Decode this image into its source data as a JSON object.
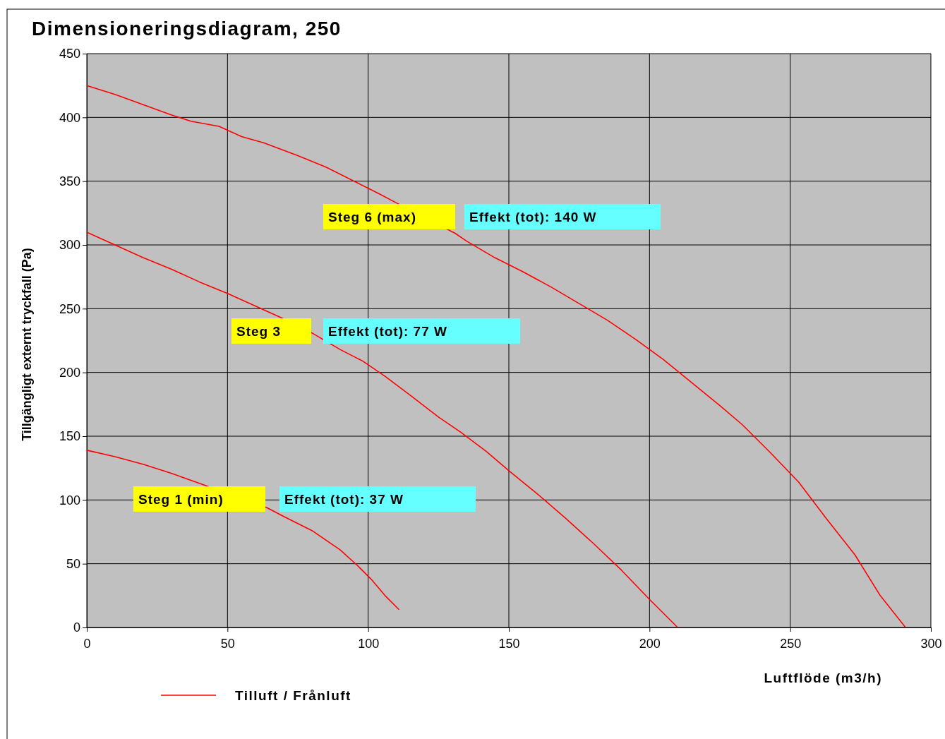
{
  "chart_data": {
    "type": "line",
    "title": "Dimensioneringsdiagram, 250",
    "xlabel": "Luftflöde (m3/h)",
    "ylabel": "Tillgängligt externt tryckfall (Pa)",
    "xlim": [
      0,
      300
    ],
    "xticks": [
      0,
      50,
      100,
      150,
      200,
      250,
      300
    ],
    "ylim": [
      0,
      450
    ],
    "yticks": [
      0,
      50,
      100,
      150,
      200,
      250,
      300,
      350,
      400,
      450
    ],
    "grid": true,
    "legend": "bottom left",
    "line_style": "solid",
    "marker": "none",
    "series": [
      {
        "name": "Tilluft / Frånluft",
        "color": "#ff0000",
        "x": [
          0,
          10,
          20,
          30,
          37,
          47,
          55,
          63,
          75,
          85,
          95,
          104,
          110,
          131,
          135,
          145,
          155,
          165,
          175,
          185,
          195,
          205,
          215,
          225,
          233,
          243,
          253,
          263,
          273,
          282,
          291
        ],
        "values": [
          425,
          418,
          410,
          402,
          397,
          393,
          385,
          380,
          370,
          361,
          350,
          340,
          333,
          309,
          303,
          290,
          279,
          267,
          254,
          241,
          226,
          210,
          192,
          174,
          159,
          137,
          114,
          85,
          57,
          25,
          0
        ]
      },
      {
        "color": "#ff0000",
        "x": [
          0,
          10,
          20,
          30,
          40,
          50,
          60,
          70,
          80,
          90,
          98,
          106,
          115,
          125,
          133,
          142,
          150,
          160,
          170,
          180,
          190,
          200,
          210
        ],
        "values": [
          310,
          300,
          290,
          281,
          271,
          262,
          252,
          242,
          231,
          218,
          209,
          197,
          182,
          165,
          153,
          138,
          123,
          105,
          86,
          66,
          45,
          22,
          0
        ]
      },
      {
        "color": "#ff0000",
        "x": [
          0,
          10,
          20,
          30,
          40,
          64,
          70,
          80,
          90,
          96,
          101,
          106,
          111
        ],
        "values": [
          139,
          134,
          128,
          121,
          113,
          94,
          87,
          76,
          61,
          49,
          38,
          25,
          14
        ]
      }
    ],
    "annotations": [
      "Steg 6 (max)",
      "Effekt (tot): 140 W",
      "Steg 3",
      "Effekt (tot): 77 W",
      "Steg 1 (min)",
      "Effekt (tot): 37 W"
    ]
  }
}
